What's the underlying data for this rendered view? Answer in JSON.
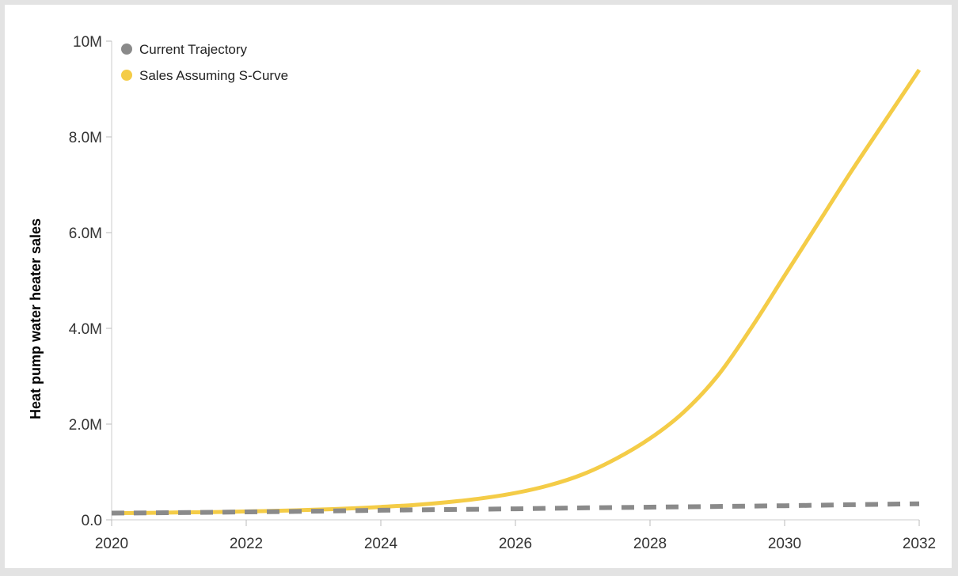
{
  "chart_data": {
    "type": "line",
    "ylabel": "Heat pump water heater sales",
    "xlabel": "",
    "xlim": [
      2020,
      2032
    ],
    "ylim": [
      0,
      10000000
    ],
    "x_ticks": [
      {
        "value": 2020,
        "label": "2020"
      },
      {
        "value": 2022,
        "label": "2022"
      },
      {
        "value": 2024,
        "label": "2024"
      },
      {
        "value": 2026,
        "label": "2026"
      },
      {
        "value": 2028,
        "label": "2028"
      },
      {
        "value": 2030,
        "label": "2030"
      },
      {
        "value": 2032,
        "label": "2032"
      }
    ],
    "y_ticks": [
      {
        "value": 0,
        "label": "0.0"
      },
      {
        "value": 2000000,
        "label": "2.0M"
      },
      {
        "value": 4000000,
        "label": "4.0M"
      },
      {
        "value": 6000000,
        "label": "6.0M"
      },
      {
        "value": 8000000,
        "label": "8.0M"
      },
      {
        "value": 10000000,
        "label": "10M"
      }
    ],
    "legend_position": "top-left",
    "grid": false,
    "series": [
      {
        "name": "Current Trajectory",
        "color": "#8a8a8a",
        "dashed": true,
        "x": [
          2020,
          2021,
          2022,
          2023,
          2024,
          2025,
          2026,
          2027,
          2028,
          2029,
          2030,
          2031,
          2032
        ],
        "values": [
          140000,
          150000,
          165000,
          180000,
          200000,
          215000,
          230000,
          250000,
          265000,
          280000,
          295000,
          315000,
          335000
        ]
      },
      {
        "name": "Sales Assuming S-Curve",
        "color": "#f4cc47",
        "dashed": false,
        "x": [
          2020,
          2020.5,
          2021,
          2021.5,
          2022,
          2022.5,
          2023,
          2023.5,
          2024,
          2024.5,
          2025,
          2025.5,
          2026,
          2026.5,
          2027,
          2027.5,
          2028,
          2028.5,
          2029,
          2029.5,
          2030,
          2030.5,
          2031,
          2031.5,
          2032
        ],
        "values": [
          140000,
          145000,
          155000,
          162000,
          175000,
          190000,
          210000,
          235000,
          270000,
          310000,
          370000,
          450000,
          560000,
          720000,
          950000,
          1280000,
          1700000,
          2250000,
          3000000,
          4000000,
          5100000,
          6200000,
          7300000,
          8350000,
          9400000
        ]
      }
    ]
  }
}
